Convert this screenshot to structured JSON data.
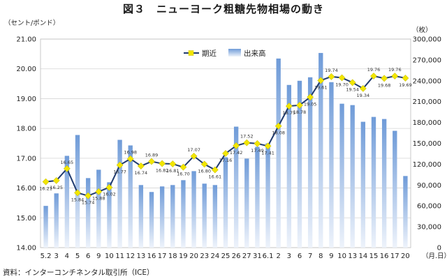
{
  "title": "図３　ニューヨーク粗糖先物相場の動き",
  "source": "資料：インターコンチネンタル取引所（ICE）",
  "chart_data": {
    "type": "bar+line",
    "title": "図３　ニューヨーク粗糖先物相場の動き",
    "y_left_label": "（セント/ポンド）",
    "y_right_label": "（枚）",
    "x_unit_label": "（月.日）",
    "y_left_range": [
      14.0,
      21.0
    ],
    "y_left_ticks": [
      "14.00",
      "15.00",
      "16.00",
      "17.00",
      "18.00",
      "19.00",
      "20.00",
      "21.00"
    ],
    "y_right_range": [
      0,
      300000
    ],
    "y_right_ticks": [
      "0",
      "30,000",
      "60,000",
      "90,000",
      "120,000",
      "150,000",
      "180,000",
      "210,000",
      "240,000",
      "270,000",
      "300,000"
    ],
    "grid": true,
    "legend_position": "top-center",
    "categories": [
      "5.2",
      "3",
      "4",
      "5",
      "6",
      "9",
      "10",
      "11",
      "12",
      "13",
      "16",
      "17",
      "18",
      "19",
      "20",
      "23",
      "24",
      "25",
      "26",
      "27",
      "31",
      "6.1",
      "2",
      "3",
      "6",
      "7",
      "8",
      "9",
      "10",
      "13",
      "14",
      "15",
      "16",
      "17",
      "20"
    ],
    "series": [
      {
        "name": "期近",
        "type": "line",
        "axis": "left",
        "color": "#1f3a6e",
        "marker_color": "#f2e600",
        "values": [
          16.21,
          16.25,
          16.65,
          15.84,
          15.74,
          15.88,
          16.02,
          16.77,
          16.98,
          16.74,
          16.89,
          16.82,
          16.81,
          16.7,
          17.07,
          16.8,
          16.61,
          17.16,
          17.42,
          17.52,
          17.49,
          17.41,
          18.08,
          18.75,
          18.78,
          19.05,
          19.61,
          19.74,
          19.7,
          19.54,
          19.34,
          19.76,
          19.68,
          19.76,
          19.69
        ]
      },
      {
        "name": "出来高",
        "type": "bar",
        "axis": "right",
        "color": "#8fb2e0",
        "values": [
          60000,
          78000,
          132000,
          162000,
          100000,
          112000,
          94000,
          155000,
          147000,
          90000,
          80000,
          88000,
          90000,
          97000,
          110000,
          92000,
          90000,
          130000,
          174000,
          128000,
          145000,
          150000,
          272000,
          234000,
          240000,
          245000,
          280000,
          238000,
          207000,
          205000,
          181000,
          188000,
          185000,
          168000,
          103000
        ]
      }
    ]
  }
}
